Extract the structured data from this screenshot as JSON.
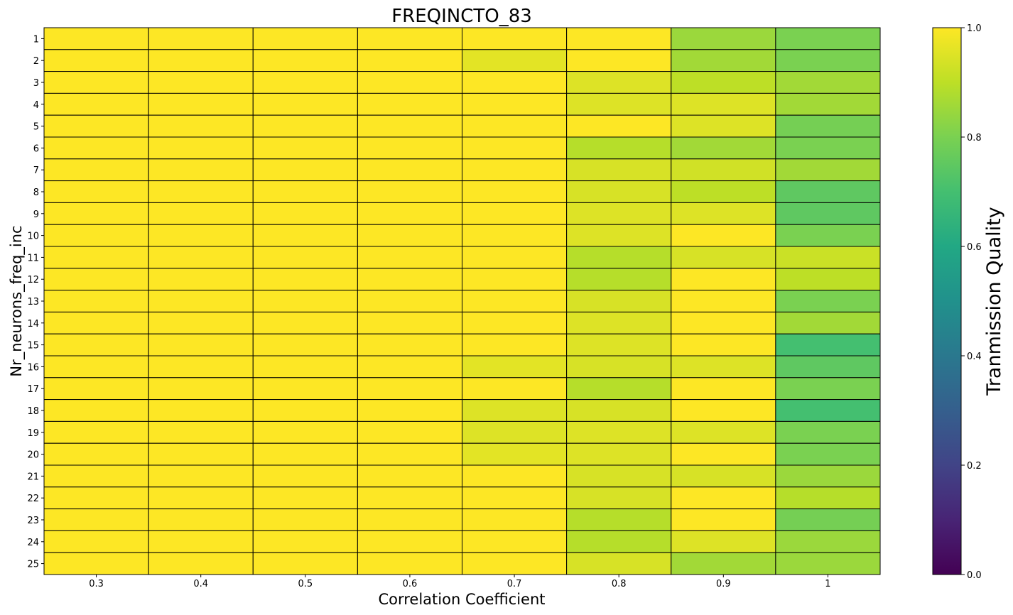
{
  "chart_data": {
    "type": "heatmap",
    "title": "FREQINCTO_83",
    "xlabel": "Correlation Coefficient",
    "ylabel": "Nr_neurons_freq_inc",
    "x_categories": [
      "0.3",
      "0.4",
      "0.5",
      "0.6",
      "0.7",
      "0.8",
      "0.9",
      "1"
    ],
    "y_categories": [
      "1",
      "2",
      "3",
      "4",
      "5",
      "6",
      "7",
      "8",
      "9",
      "10",
      "11",
      "12",
      "13",
      "14",
      "15",
      "16",
      "17",
      "18",
      "19",
      "20",
      "21",
      "22",
      "23",
      "24",
      "25"
    ],
    "values": [
      [
        1.0,
        1.0,
        1.0,
        1.0,
        1.0,
        1.0,
        0.85,
        0.8
      ],
      [
        1.0,
        1.0,
        1.0,
        1.0,
        0.96,
        1.0,
        0.86,
        0.8
      ],
      [
        1.0,
        1.0,
        1.0,
        1.0,
        1.0,
        0.95,
        0.9,
        0.86
      ],
      [
        1.0,
        1.0,
        1.0,
        1.0,
        1.0,
        0.95,
        0.95,
        0.86
      ],
      [
        1.0,
        1.0,
        1.0,
        1.0,
        1.0,
        1.0,
        0.95,
        0.79
      ],
      [
        1.0,
        1.0,
        1.0,
        1.0,
        1.0,
        0.89,
        0.86,
        0.8
      ],
      [
        1.0,
        1.0,
        1.0,
        1.0,
        1.0,
        0.94,
        0.93,
        0.86
      ],
      [
        1.0,
        1.0,
        1.0,
        1.0,
        1.0,
        0.94,
        0.9,
        0.75
      ],
      [
        1.0,
        1.0,
        1.0,
        1.0,
        1.0,
        0.95,
        0.95,
        0.75
      ],
      [
        1.0,
        1.0,
        1.0,
        1.0,
        1.0,
        0.95,
        1.0,
        0.8
      ],
      [
        1.0,
        1.0,
        1.0,
        1.0,
        1.0,
        0.89,
        0.94,
        0.92
      ],
      [
        1.0,
        1.0,
        1.0,
        1.0,
        1.0,
        0.89,
        1.0,
        0.9
      ],
      [
        1.0,
        1.0,
        1.0,
        1.0,
        1.0,
        0.94,
        1.0,
        0.8
      ],
      [
        1.0,
        1.0,
        1.0,
        1.0,
        1.0,
        0.95,
        1.0,
        0.86
      ],
      [
        1.0,
        1.0,
        1.0,
        1.0,
        1.0,
        0.95,
        1.0,
        0.7
      ],
      [
        1.0,
        1.0,
        1.0,
        1.0,
        0.96,
        0.94,
        0.95,
        0.75
      ],
      [
        1.0,
        1.0,
        1.0,
        1.0,
        1.0,
        0.89,
        1.0,
        0.8
      ],
      [
        1.0,
        1.0,
        1.0,
        1.0,
        0.95,
        0.94,
        1.0,
        0.7
      ],
      [
        1.0,
        1.0,
        1.0,
        1.0,
        0.95,
        0.95,
        0.95,
        0.8
      ],
      [
        1.0,
        1.0,
        1.0,
        1.0,
        0.96,
        0.95,
        1.0,
        0.8
      ],
      [
        1.0,
        1.0,
        1.0,
        1.0,
        1.0,
        0.94,
        0.94,
        0.85
      ],
      [
        1.0,
        1.0,
        1.0,
        1.0,
        1.0,
        0.94,
        1.0,
        0.89
      ],
      [
        1.0,
        1.0,
        1.0,
        1.0,
        1.0,
        0.89,
        1.0,
        0.79
      ],
      [
        1.0,
        1.0,
        1.0,
        1.0,
        1.0,
        0.89,
        0.95,
        0.85
      ],
      [
        1.0,
        1.0,
        1.0,
        1.0,
        1.0,
        0.94,
        0.86,
        0.85
      ]
    ],
    "colorbar": {
      "label": "Tranmission Quality",
      "range": [
        0,
        1
      ],
      "ticks": [
        "0.0",
        "0.2",
        "0.4",
        "0.6",
        "0.8",
        "1.0"
      ],
      "colormap": "viridis"
    },
    "cell_edgecolor": "#000000"
  }
}
